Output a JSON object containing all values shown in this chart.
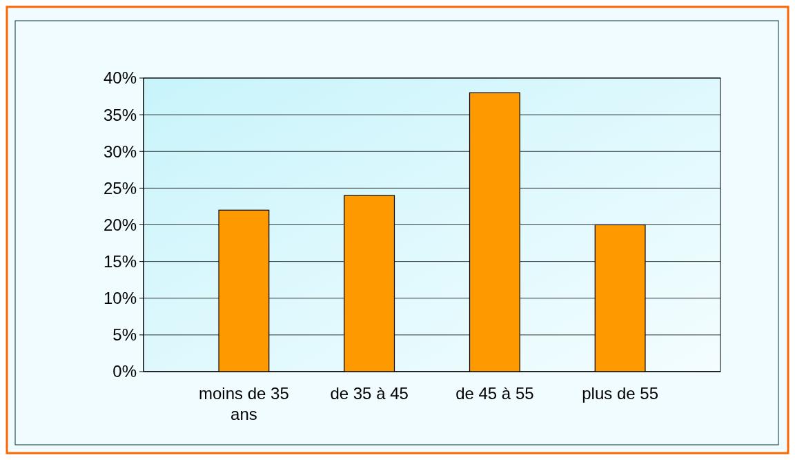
{
  "chart_data": {
    "type": "bar",
    "categories": [
      "moins de 35 ans",
      "de 35 à 45",
      "de 45 à 55",
      "plus de 55"
    ],
    "values": [
      22,
      24,
      38,
      20
    ],
    "color": "#ff9900",
    "ylim": [
      0,
      40
    ],
    "yticks": [
      {
        "value": 0,
        "label": "0%"
      },
      {
        "value": 5,
        "label": "5%"
      },
      {
        "value": 10,
        "label": "10%"
      },
      {
        "value": 15,
        "label": "15%"
      },
      {
        "value": 20,
        "label": "20%"
      },
      {
        "value": 25,
        "label": "25%"
      },
      {
        "value": 30,
        "label": "30%"
      },
      {
        "value": 35,
        "label": "35%"
      },
      {
        "value": 40,
        "label": "40%"
      }
    ],
    "grid": "y"
  }
}
